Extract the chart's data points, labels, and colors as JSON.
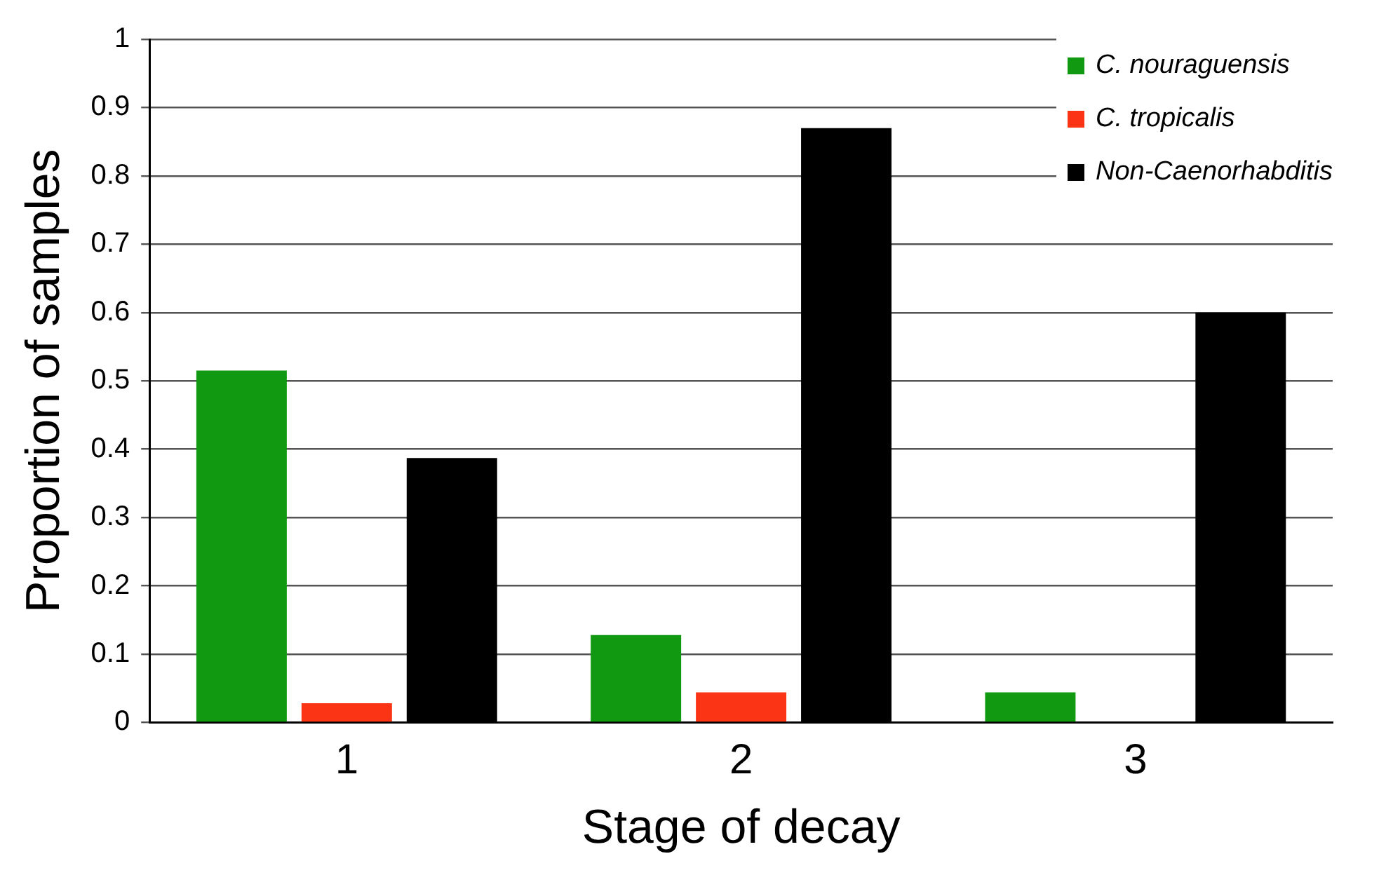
{
  "chart_data": {
    "type": "bar",
    "xlabel": "Stage of decay",
    "ylabel": "Proportion of samples",
    "categories": [
      "1",
      "2",
      "3"
    ],
    "series": [
      {
        "name": "C. nouraguensis",
        "color": "#119a11",
        "values": [
          0.515,
          0.128,
          0.044
        ]
      },
      {
        "name": "C. tropicalis",
        "color": "#fa3414",
        "values": [
          0.028,
          0.044,
          0
        ]
      },
      {
        "name": "Non-Caenorhabditis",
        "color": "#000000",
        "values": [
          0.387,
          0.87,
          0.6
        ]
      }
    ],
    "ylim": [
      0,
      1
    ],
    "yticks": [
      0,
      0.1,
      0.2,
      0.3,
      0.4,
      0.5,
      0.6,
      0.7,
      0.8,
      0.9,
      1
    ],
    "grid": "y",
    "legend": "top right"
  }
}
